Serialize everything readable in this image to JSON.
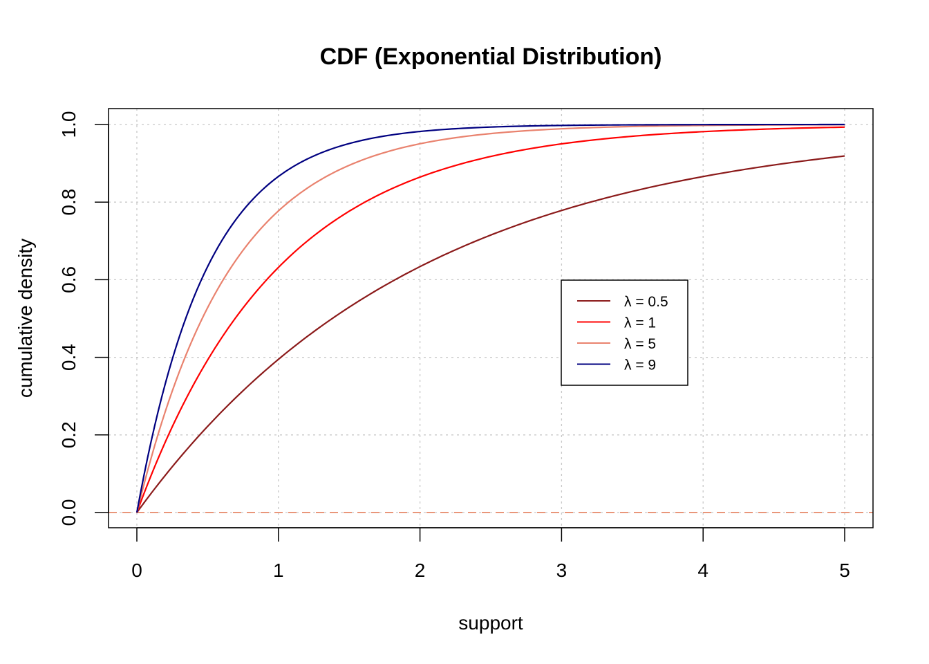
{
  "chart_data": {
    "type": "line",
    "title": "CDF (Exponential Distribution)",
    "xlabel": "support",
    "ylabel": "cumulative density",
    "xlim": [
      0,
      5
    ],
    "ylim": [
      0,
      1
    ],
    "x_ticks": [
      "0",
      "1",
      "2",
      "3",
      "4",
      "5"
    ],
    "y_ticks": [
      "0.0",
      "0.2",
      "0.4",
      "0.6",
      "0.8",
      "1.0"
    ],
    "grid": true,
    "legend_position": "center-right",
    "reference_line": {
      "y": 0,
      "style": "dashed",
      "color": "#E9967A"
    },
    "x": [
      0,
      0.25,
      0.5,
      0.75,
      1,
      1.25,
      1.5,
      1.75,
      2,
      2.25,
      2.5,
      2.75,
      3,
      3.25,
      3.5,
      3.75,
      4,
      4.25,
      4.5,
      4.75,
      5
    ],
    "series": [
      {
        "name": "λ = 0.5",
        "color": "#8B1A1A",
        "values": [
          0,
          0.118,
          0.221,
          0.313,
          0.393,
          0.465,
          0.528,
          0.583,
          0.632,
          0.675,
          0.713,
          0.747,
          0.777,
          0.803,
          0.826,
          0.847,
          0.865,
          0.881,
          0.895,
          0.907,
          0.918
        ]
      },
      {
        "name": "λ = 1",
        "color": "#FF0000",
        "values": [
          0,
          0.221,
          0.393,
          0.528,
          0.632,
          0.713,
          0.777,
          0.826,
          0.865,
          0.895,
          0.918,
          0.936,
          0.95,
          0.961,
          0.97,
          0.976,
          0.982,
          0.986,
          0.989,
          0.991,
          0.993
        ]
      },
      {
        "name": "λ = 5",
        "color": "#E9826E",
        "values": [
          0,
          0.313,
          0.528,
          0.675,
          0.777,
          0.847,
          0.895,
          0.928,
          0.95,
          0.966,
          0.976,
          0.984,
          0.989,
          0.992,
          0.995,
          0.996,
          0.997,
          0.998,
          0.999,
          0.999,
          0.999
        ]
      },
      {
        "name": "λ = 9",
        "color": "#000080",
        "values": [
          0,
          0.395,
          0.634,
          0.779,
          0.866,
          0.919,
          0.951,
          0.97,
          0.982,
          0.989,
          0.993,
          0.996,
          0.998,
          0.999,
          0.999,
          1.0,
          1.0,
          1.0,
          1.0,
          1.0,
          1.0
        ]
      }
    ]
  }
}
